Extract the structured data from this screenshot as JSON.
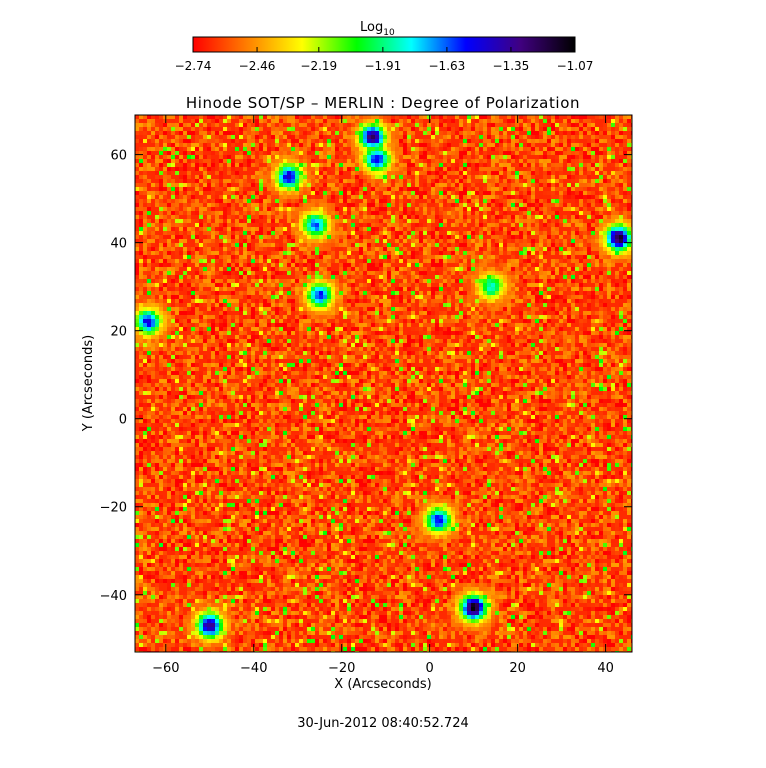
{
  "chart_data": {
    "type": "heatmap",
    "title": "Hinode SOT/SP – MERLIN : Degree of Polarization",
    "xlabel": "X (Arcseconds)",
    "ylabel": "Y (Arcseconds)",
    "xlim": [
      -67,
      46
    ],
    "ylim": [
      -53,
      69
    ],
    "x_ticks": [
      "−60",
      "−40",
      "−20",
      "0",
      "20",
      "40"
    ],
    "x_tick_values": [
      -60,
      -40,
      -20,
      0,
      20,
      40
    ],
    "y_ticks": [
      "−40",
      "−20",
      "0",
      "20",
      "40",
      "60"
    ],
    "y_tick_values": [
      -40,
      -20,
      0,
      20,
      40,
      60
    ],
    "colorbar": {
      "label_main": "Log",
      "label_sub": "10",
      "tick_labels": [
        "−2.74",
        "−2.46",
        "−2.19",
        "−1.91",
        "−1.63",
        "−1.35",
        "−1.07"
      ],
      "tick_values": [
        -2.74,
        -2.46,
        -2.19,
        -1.91,
        -1.63,
        -1.35,
        -1.07
      ],
      "range": [
        -2.74,
        -1.07
      ],
      "colormap": "rainbow-reversed",
      "colors": [
        "#ff0000",
        "#ff8000",
        "#ffff00",
        "#00ff00",
        "#00ffff",
        "#0000ff",
        "#400080",
        "#000000"
      ]
    },
    "hotspots": [
      {
        "x": 10,
        "y": -43,
        "value": -1.1
      },
      {
        "x": 43,
        "y": 41,
        "value": -1.15
      },
      {
        "x": -13,
        "y": 64,
        "value": -1.25
      },
      {
        "x": -32,
        "y": 55,
        "value": -1.45
      },
      {
        "x": -25,
        "y": 28,
        "value": -1.55
      },
      {
        "x": -64,
        "y": 22,
        "value": -1.5
      },
      {
        "x": -50,
        "y": -47,
        "value": -1.3
      },
      {
        "x": 2,
        "y": -23,
        "value": -1.5
      },
      {
        "x": -26,
        "y": 44,
        "value": -1.6
      },
      {
        "x": 14,
        "y": 30,
        "value": -1.8
      },
      {
        "x": -12,
        "y": 59,
        "value": -1.5
      }
    ],
    "background_level": -2.6,
    "grid": false
  },
  "footer": {
    "timestamp": "30-Jun-2012 08:40:52.724"
  }
}
